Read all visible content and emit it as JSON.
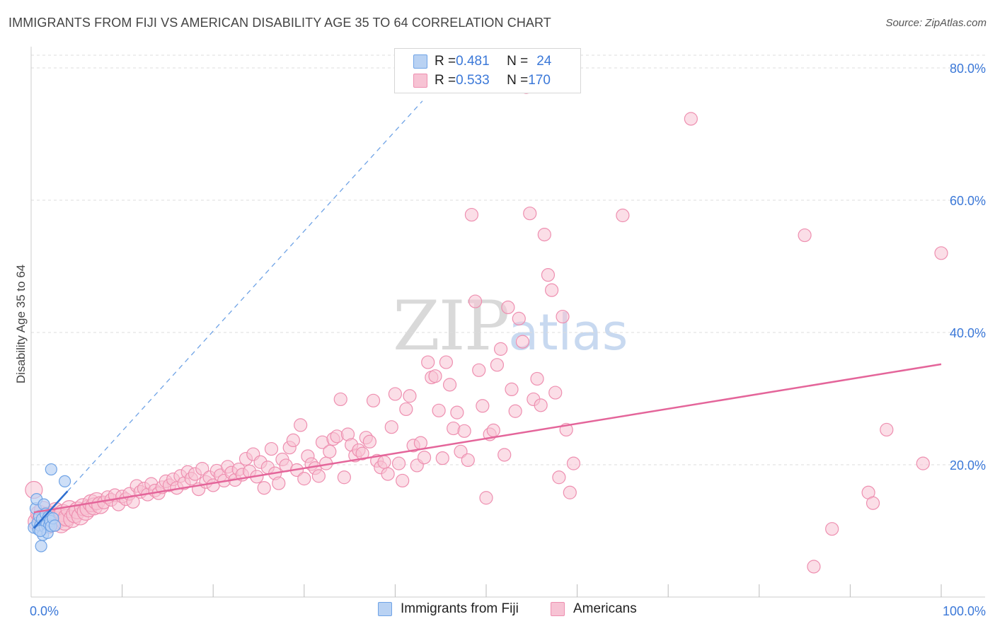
{
  "title": "IMMIGRANTS FROM FIJI VS AMERICAN DISABILITY AGE 35 TO 64 CORRELATION CHART",
  "source": "Source: ZipAtlas.com",
  "watermark": {
    "zip": "ZIP",
    "atlas": "atlas"
  },
  "legend": {
    "fiji": {
      "r_label": "R = ",
      "r_value": "0.481",
      "n_label": "N = ",
      "n_value": "24"
    },
    "americans": {
      "r_label": "R = ",
      "r_value": "0.533",
      "n_label": "N = ",
      "n_value": "170"
    }
  },
  "colors": {
    "fiji": "#6fa3e6",
    "fiji_fill": "#b9d2f3",
    "fiji_line": "#2e6fd0",
    "americans": "#ee8fb0",
    "americans_fill": "#f7c3d4",
    "americans_line": "#e4659a",
    "axis_text": "#3b78d8",
    "grid": "#dddddd"
  },
  "chart_data": {
    "type": "scatter",
    "title": "IMMIGRANTS FROM FIJI VS AMERICAN DISABILITY AGE 35 TO 64 CORRELATION CHART",
    "xlabel": "",
    "ylabel": "Disability Age 35 to 64",
    "xlim": [
      0,
      100
    ],
    "ylim": [
      0,
      85
    ],
    "x_tick_labels": [
      "0.0%",
      "100.0%"
    ],
    "y_ticks": [
      20,
      40,
      60,
      80
    ],
    "y_tick_labels": [
      "20.0%",
      "40.0%",
      "60.0%",
      "80.0%"
    ],
    "grid": true,
    "legend_position": "top-center",
    "series": [
      {
        "name": "Immigrants from Fiji",
        "r": 0.481,
        "n": 24,
        "trend": {
          "solid": [
            [
              0.3,
              10.4
            ],
            [
              4.0,
              16.0
            ]
          ],
          "dashed": [
            [
              4.0,
              16.0
            ],
            [
              43.0,
              75.0
            ]
          ]
        },
        "points": [
          [
            0.3,
            10.5
          ],
          [
            0.5,
            13.4
          ],
          [
            0.6,
            14.8
          ],
          [
            0.7,
            11.2
          ],
          [
            0.8,
            10.2
          ],
          [
            0.9,
            12.2
          ],
          [
            1.0,
            10.8
          ],
          [
            1.1,
            7.7
          ],
          [
            1.2,
            11.8
          ],
          [
            1.3,
            9.4
          ],
          [
            1.4,
            14.0
          ],
          [
            1.5,
            10.6
          ],
          [
            1.6,
            12.6
          ],
          [
            1.7,
            11.0
          ],
          [
            1.8,
            9.7
          ],
          [
            1.9,
            12.1
          ],
          [
            2.0,
            10.9
          ],
          [
            2.1,
            11.5
          ],
          [
            2.2,
            10.7
          ],
          [
            2.4,
            11.9
          ],
          [
            2.2,
            19.3
          ],
          [
            3.7,
            17.5
          ],
          [
            1.0,
            10.0
          ],
          [
            2.6,
            10.8
          ]
        ]
      },
      {
        "name": "Americans",
        "r": 0.533,
        "n": 170,
        "trend": {
          "solid": [
            [
              0.3,
              12.8
            ],
            [
              100,
              35.2
            ]
          ]
        },
        "points": [
          [
            0.3,
            16.2
          ],
          [
            0.6,
            11.4
          ],
          [
            0.9,
            12.6
          ],
          [
            1.1,
            11.9
          ],
          [
            1.3,
            13.2
          ],
          [
            1.5,
            11.1
          ],
          [
            1.7,
            12.3
          ],
          [
            1.9,
            10.9
          ],
          [
            2.1,
            11.8
          ],
          [
            2.3,
            12.4
          ],
          [
            2.5,
            11.2
          ],
          [
            2.7,
            13.0
          ],
          [
            2.9,
            11.6
          ],
          [
            3.1,
            12.1
          ],
          [
            3.3,
            11.0
          ],
          [
            3.5,
            12.7
          ],
          [
            3.7,
            11.4
          ],
          [
            3.9,
            12.0
          ],
          [
            4.2,
            13.3
          ],
          [
            4.5,
            11.8
          ],
          [
            4.8,
            12.5
          ],
          [
            5.1,
            13.1
          ],
          [
            5.4,
            12.2
          ],
          [
            5.7,
            13.6
          ],
          [
            6.0,
            12.9
          ],
          [
            6.3,
            13.4
          ],
          [
            6.6,
            14.2
          ],
          [
            6.9,
            13.7
          ],
          [
            7.2,
            14.5
          ],
          [
            7.6,
            13.9
          ],
          [
            8.0,
            14.3
          ],
          [
            8.4,
            15.1
          ],
          [
            8.8,
            14.7
          ],
          [
            9.2,
            15.4
          ],
          [
            9.6,
            14.0
          ],
          [
            10.0,
            15.2
          ],
          [
            10.4,
            14.8
          ],
          [
            10.8,
            15.6
          ],
          [
            11.2,
            14.4
          ],
          [
            11.6,
            16.8
          ],
          [
            12.0,
            15.9
          ],
          [
            12.4,
            16.4
          ],
          [
            12.8,
            15.5
          ],
          [
            13.2,
            17.1
          ],
          [
            13.6,
            16.1
          ],
          [
            14.0,
            15.7
          ],
          [
            14.4,
            16.6
          ],
          [
            14.8,
            17.5
          ],
          [
            15.2,
            16.9
          ],
          [
            15.6,
            17.8
          ],
          [
            16.0,
            16.5
          ],
          [
            16.4,
            18.3
          ],
          [
            16.8,
            17.2
          ],
          [
            17.2,
            18.9
          ],
          [
            17.6,
            17.9
          ],
          [
            18.0,
            18.6
          ],
          [
            18.4,
            16.3
          ],
          [
            18.8,
            19.4
          ],
          [
            19.2,
            17.4
          ],
          [
            19.6,
            18.1
          ],
          [
            20.0,
            16.9
          ],
          [
            20.4,
            19.1
          ],
          [
            20.8,
            18.4
          ],
          [
            21.2,
            17.6
          ],
          [
            21.6,
            19.7
          ],
          [
            22.0,
            18.8
          ],
          [
            22.4,
            17.7
          ],
          [
            22.8,
            19.3
          ],
          [
            23.2,
            18.5
          ],
          [
            23.6,
            20.9
          ],
          [
            24.0,
            19.0
          ],
          [
            24.4,
            21.6
          ],
          [
            24.8,
            18.2
          ],
          [
            25.2,
            20.4
          ],
          [
            25.6,
            16.5
          ],
          [
            26.0,
            19.6
          ],
          [
            26.4,
            22.4
          ],
          [
            26.8,
            18.7
          ],
          [
            27.2,
            17.2
          ],
          [
            27.6,
            20.8
          ],
          [
            28.0,
            19.9
          ],
          [
            28.4,
            22.6
          ],
          [
            28.8,
            23.7
          ],
          [
            29.2,
            19.2
          ],
          [
            29.6,
            26.0
          ],
          [
            30.0,
            17.9
          ],
          [
            30.4,
            21.3
          ],
          [
            30.8,
            20.1
          ],
          [
            31.2,
            19.5
          ],
          [
            31.6,
            18.3
          ],
          [
            32.0,
            23.4
          ],
          [
            32.4,
            20.2
          ],
          [
            32.8,
            22.0
          ],
          [
            33.2,
            23.9
          ],
          [
            33.6,
            24.3
          ],
          [
            34.0,
            29.9
          ],
          [
            34.4,
            18.1
          ],
          [
            34.8,
            24.6
          ],
          [
            35.2,
            23.0
          ],
          [
            35.6,
            21.4
          ],
          [
            36.0,
            22.2
          ],
          [
            36.4,
            21.7
          ],
          [
            36.8,
            24.1
          ],
          [
            37.2,
            23.5
          ],
          [
            37.6,
            29.7
          ],
          [
            38.0,
            20.6
          ],
          [
            38.4,
            19.6
          ],
          [
            38.8,
            20.4
          ],
          [
            39.2,
            18.6
          ],
          [
            39.6,
            25.7
          ],
          [
            40.0,
            30.7
          ],
          [
            40.4,
            20.2
          ],
          [
            40.8,
            17.6
          ],
          [
            41.2,
            28.4
          ],
          [
            41.6,
            30.4
          ],
          [
            42.0,
            22.9
          ],
          [
            42.4,
            19.9
          ],
          [
            42.8,
            23.3
          ],
          [
            43.2,
            21.1
          ],
          [
            43.6,
            35.5
          ],
          [
            44.0,
            33.2
          ],
          [
            44.4,
            33.4
          ],
          [
            44.8,
            28.2
          ],
          [
            45.2,
            21.0
          ],
          [
            45.6,
            35.5
          ],
          [
            46.0,
            32.1
          ],
          [
            46.4,
            25.5
          ],
          [
            46.8,
            27.9
          ],
          [
            47.2,
            22.0
          ],
          [
            47.6,
            25.1
          ],
          [
            48.0,
            20.7
          ],
          [
            48.4,
            57.8
          ],
          [
            48.8,
            44.7
          ],
          [
            49.2,
            34.3
          ],
          [
            49.6,
            28.9
          ],
          [
            50.0,
            15.0
          ],
          [
            50.4,
            24.6
          ],
          [
            50.8,
            25.2
          ],
          [
            51.2,
            35.1
          ],
          [
            51.6,
            37.5
          ],
          [
            52.0,
            21.5
          ],
          [
            52.4,
            43.8
          ],
          [
            52.8,
            31.4
          ],
          [
            53.2,
            28.1
          ],
          [
            53.6,
            42.1
          ],
          [
            54.0,
            38.6
          ],
          [
            54.4,
            77.1
          ],
          [
            54.8,
            58.0
          ],
          [
            55.2,
            29.9
          ],
          [
            55.6,
            33.0
          ],
          [
            56.0,
            29.0
          ],
          [
            56.4,
            54.8
          ],
          [
            56.8,
            48.7
          ],
          [
            57.2,
            46.4
          ],
          [
            57.6,
            30.9
          ],
          [
            58.0,
            18.1
          ],
          [
            58.4,
            42.4
          ],
          [
            58.8,
            25.3
          ],
          [
            59.2,
            15.8
          ],
          [
            59.6,
            20.2
          ],
          [
            72.5,
            72.3
          ],
          [
            65.0,
            57.7
          ],
          [
            85.0,
            54.7
          ],
          [
            100.0,
            52.0
          ],
          [
            94.0,
            25.3
          ],
          [
            98.0,
            20.2
          ],
          [
            92.0,
            15.8
          ],
          [
            92.5,
            14.2
          ],
          [
            88.0,
            10.3
          ],
          [
            86.0,
            4.6
          ]
        ]
      }
    ]
  }
}
